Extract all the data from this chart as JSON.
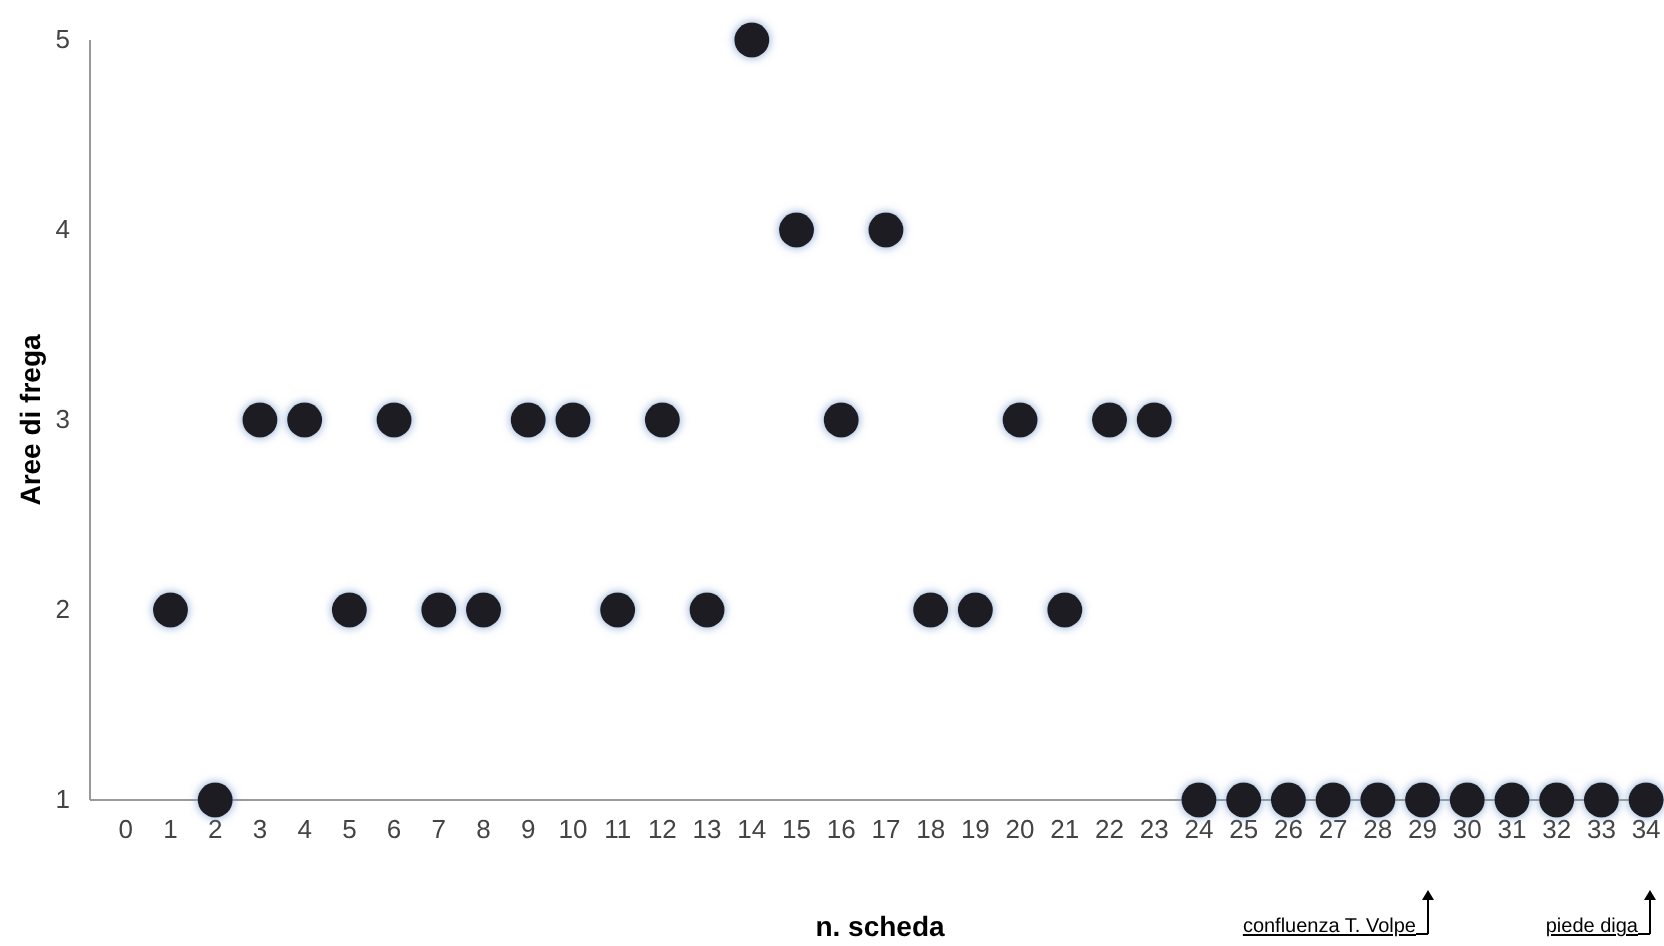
{
  "chart_data": {
    "type": "scatter",
    "xlabel": "n. scheda",
    "ylabel": "Aree di frega",
    "x": [
      1,
      2,
      3,
      4,
      5,
      6,
      7,
      8,
      9,
      10,
      11,
      12,
      13,
      14,
      15,
      16,
      17,
      18,
      19,
      20,
      21,
      22,
      23,
      24,
      25,
      26,
      27,
      28,
      29,
      30,
      31,
      32,
      33,
      34
    ],
    "values": [
      2,
      1,
      3,
      3,
      2,
      3,
      2,
      2,
      3,
      3,
      2,
      3,
      2,
      5,
      4,
      3,
      4,
      2,
      2,
      3,
      2,
      3,
      3,
      1,
      1,
      1,
      1,
      1,
      1,
      1,
      1,
      1,
      1,
      1
    ],
    "color": "#1c1c24",
    "marker": "circle",
    "grid": false,
    "xlim": [
      -0.8,
      34.4
    ],
    "xticks": [
      0,
      1,
      2,
      3,
      4,
      5,
      6,
      7,
      8,
      9,
      10,
      11,
      12,
      13,
      14,
      15,
      16,
      17,
      18,
      19,
      20,
      21,
      22,
      23,
      24,
      25,
      26,
      27,
      28,
      29,
      30,
      31,
      32,
      33,
      34
    ],
    "ylim": [
      1,
      5
    ],
    "yticks": [
      1,
      2,
      3,
      4,
      5
    ],
    "annotations": [
      "confluenza T. Volpe",
      "piede diga"
    ]
  }
}
